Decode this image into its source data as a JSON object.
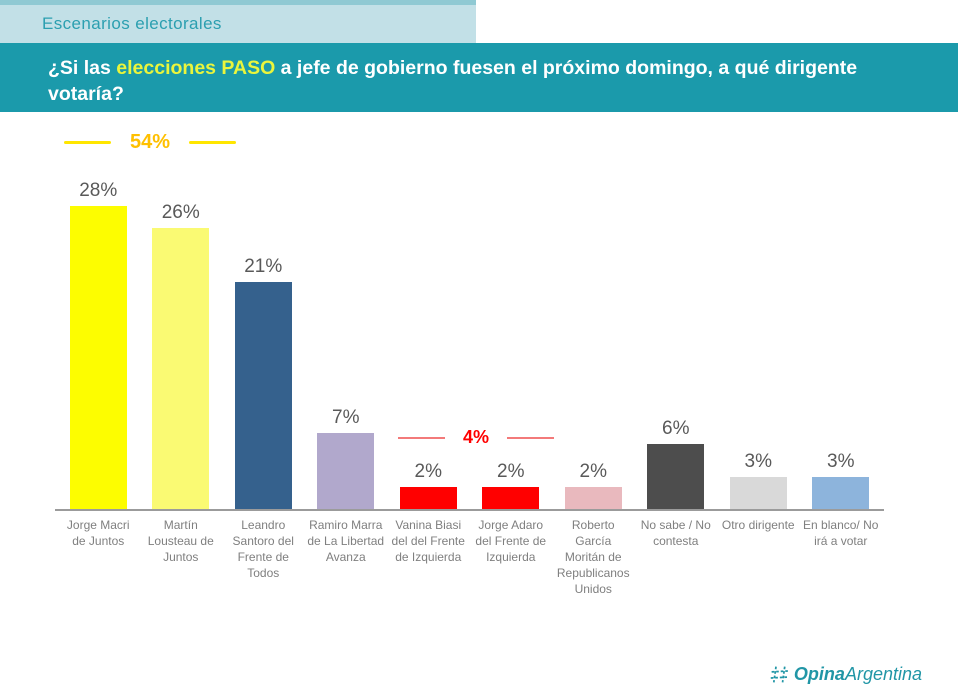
{
  "header": {
    "tab_label": "Escenarios electorales"
  },
  "question": {
    "prefix": "¿Si las ",
    "highlight": "elecciones PASO",
    "suffix": " a jefe de gobierno fuesen el próximo domingo, a qué dirigente votaría?"
  },
  "chart_data": {
    "type": "bar",
    "title": "",
    "categories": [
      "Jorge Macri de Juntos",
      "Martín Lousteau de Juntos",
      "Leandro Santoro del Frente de Todos",
      "Ramiro Marra de La Libertad Avanza",
      "Vanina Biasi del del Frente de Izquierda",
      "Jorge Adaro del Frente de Izquierda",
      "Roberto García Moritán de Republicanos Unidos",
      "No sabe / No contesta",
      "Otro dirigente",
      "En blanco/ No irá a votar"
    ],
    "values": [
      28,
      26,
      21,
      7,
      2,
      2,
      2,
      6,
      3,
      3
    ],
    "unit": "%",
    "bar_colors": [
      "#fdfd00",
      "#fafa73",
      "#35618d",
      "#b1a8cc",
      "#ff0000",
      "#ff0000",
      "#e9b9be",
      "#4d4d4d",
      "#d9d9d9",
      "#8db4dc"
    ],
    "ylim": [
      0,
      32.3
    ],
    "grid": false,
    "legend": "none",
    "xlabel": "",
    "ylabel": "",
    "value_label_color": "#595959",
    "category_label_color": "#7f7f7f",
    "axis_color": "#9b9b9b",
    "annotations": [
      {
        "text": "54%",
        "meaning": "sum of first two bars",
        "color": "#ffc000",
        "line_color": "#ffe600"
      },
      {
        "text": "4%",
        "meaning": "sum of the two red bars",
        "color": "#ff0000",
        "line_color": "#f37a7a"
      }
    ]
  },
  "logo": {
    "icon": "hashtag-icon",
    "bold_text": "Opina",
    "regular_text": "Argentina",
    "color": "#2196a6"
  }
}
